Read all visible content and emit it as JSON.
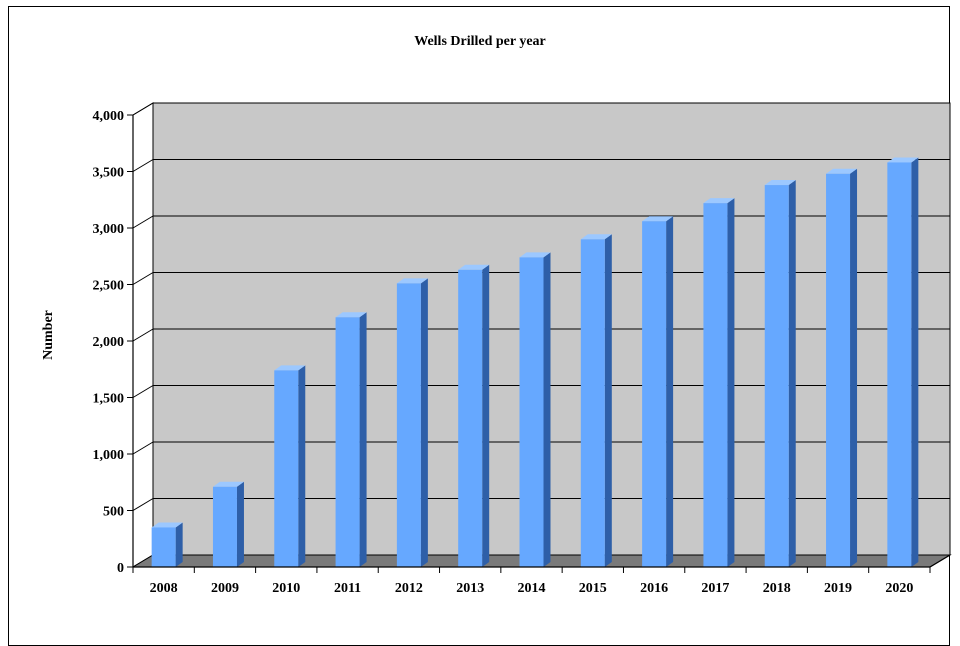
{
  "chart_data": {
    "type": "bar",
    "title": "Wells Drilled per year",
    "xlabel": "",
    "ylabel": "Number",
    "ylim": [
      0,
      4000
    ],
    "yticks": [
      0,
      500,
      1000,
      1500,
      2000,
      2500,
      3000,
      3500,
      4000
    ],
    "ytick_labels": [
      "0",
      "500",
      "1,000",
      "1,500",
      "2,000",
      "2,500",
      "3,000",
      "3,500",
      "4,000"
    ],
    "grid": true,
    "legend": "none",
    "categories": [
      "2008",
      "2009",
      "2010",
      "2011",
      "2012",
      "2013",
      "2014",
      "2015",
      "2016",
      "2017",
      "2018",
      "2019",
      "2020"
    ],
    "values": [
      350,
      710,
      1740,
      2210,
      2510,
      2630,
      2740,
      2900,
      3060,
      3220,
      3380,
      3480,
      3580
    ],
    "colors": {
      "bar_front": "#66a8ff",
      "bar_side": "#2e5fa8",
      "bar_top": "#9cc8ff",
      "back_wall": "#c8c8c8",
      "floor": "#7a7a7a"
    }
  }
}
